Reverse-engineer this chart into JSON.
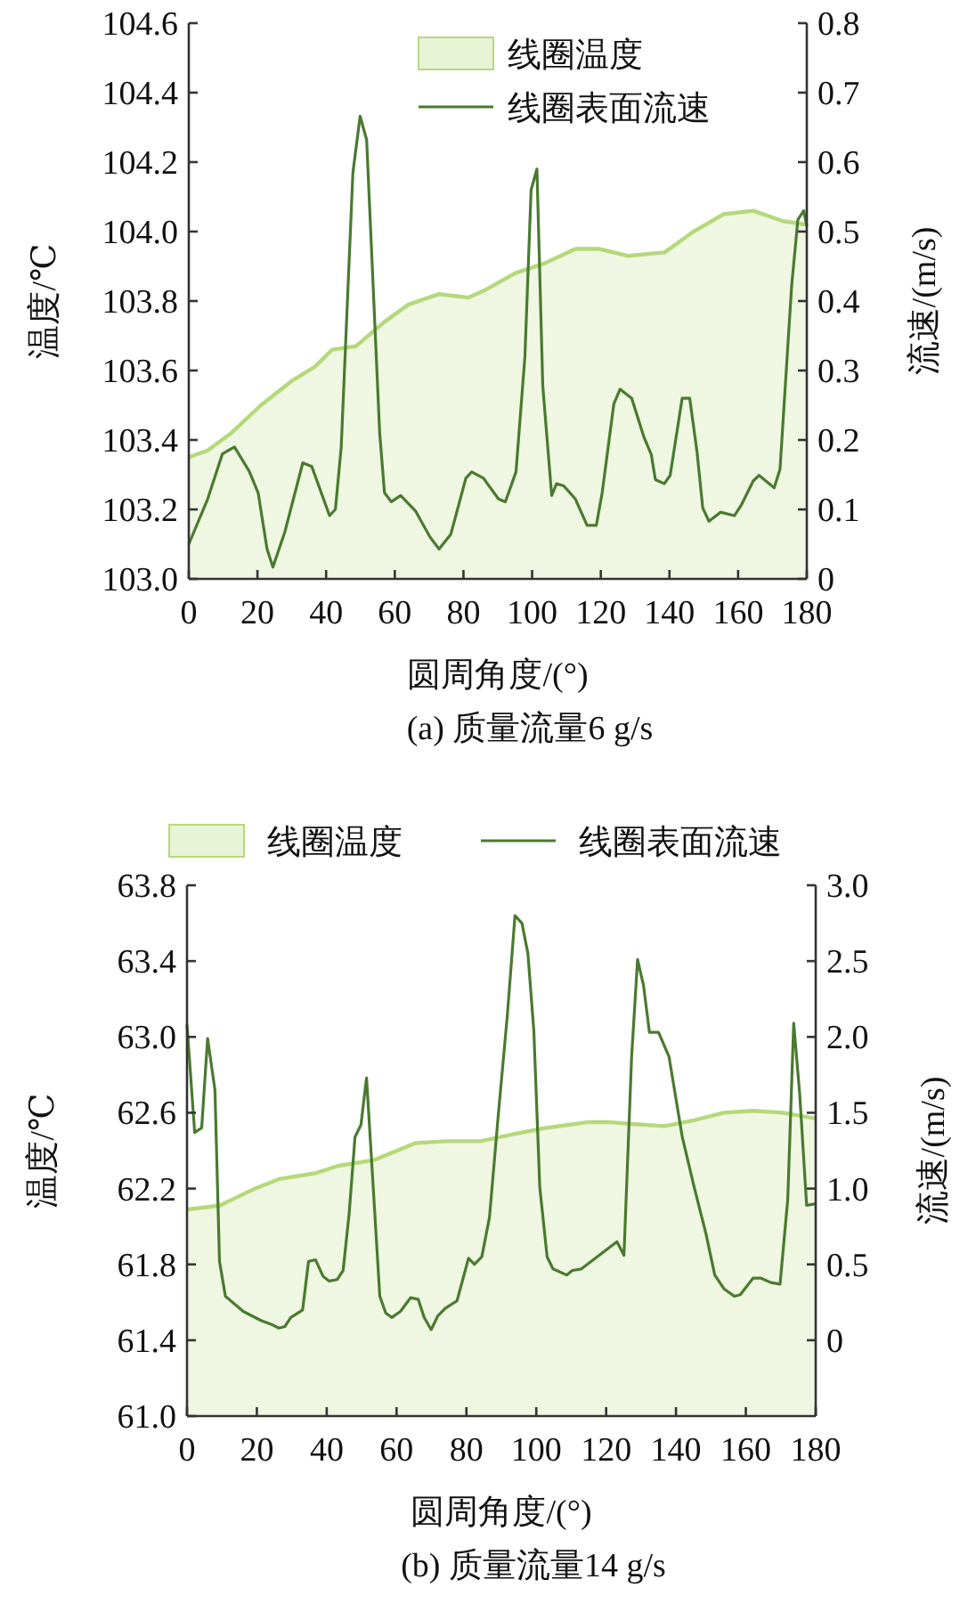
{
  "chart_data": [
    {
      "type": "area",
      "title": "(a) 质量流量6 g/s",
      "xlabel": "圆周角度/(°)",
      "ylabel": "温度/℃",
      "y2label": "流速/(m/s)",
      "legend": "top",
      "xlim": [
        0,
        180
      ],
      "xticks": [
        0,
        20,
        40,
        60,
        80,
        100,
        120,
        140,
        160,
        180
      ],
      "ylim": [
        103.0,
        104.6
      ],
      "yticks": [
        {
          "value": 103.0,
          "label": "103.0"
        },
        {
          "value": 103.2,
          "label": "103.2"
        },
        {
          "value": 103.4,
          "label": "103.4"
        },
        {
          "value": 103.6,
          "label": "103.6"
        },
        {
          "value": 103.8,
          "label": "103.8"
        },
        {
          "value": 104.0,
          "label": "104.0"
        },
        {
          "value": 104.2,
          "label": "104.2"
        },
        {
          "value": 104.4,
          "label": "104.4"
        },
        {
          "value": 104.6,
          "label": "104.6"
        }
      ],
      "y2lim": [
        0,
        0.8
      ],
      "y2ticks": [
        0,
        0.1,
        0.2,
        0.3,
        0.4,
        0.5,
        0.6,
        0.7,
        0.8
      ],
      "series": [
        {
          "name": "线圈温度",
          "color": "#b5d97a",
          "x": [
            0,
            5.5,
            12.4,
            21,
            30,
            36.6,
            41.8,
            48.7,
            57,
            64,
            72.9,
            81.5,
            86,
            95,
            104,
            112.6,
            119.5,
            128,
            138.6,
            147,
            155.8,
            164.4,
            173,
            180
          ],
          "values": [
            103.35,
            103.37,
            103.42,
            103.5,
            103.57,
            103.61,
            103.66,
            103.67,
            103.74,
            103.79,
            103.82,
            103.81,
            103.83,
            103.88,
            103.91,
            103.95,
            103.95,
            103.93,
            103.94,
            104.0,
            104.05,
            104.06,
            104.03,
            104.02
          ]
        },
        {
          "name": "线圈表面流速",
          "type": "line",
          "axis": "y2",
          "color": "#4a7a30",
          "x": [
            0,
            5.5,
            9.8,
            13.3,
            17.6,
            20.2,
            22.8,
            24.5,
            28,
            33.2,
            35.8,
            41,
            42.7,
            44.4,
            47.8,
            49.9,
            51.8,
            55.6,
            57,
            59,
            61.7,
            66,
            70.3,
            72.9,
            76.3,
            80.7,
            82.4,
            85.8,
            90.2,
            92.2,
            95.3,
            97.9,
            99.7,
            101.4,
            103.1,
            105.7,
            107.1,
            109.2,
            112.6,
            116,
            118.7,
            120.4,
            123.8,
            125.6,
            129,
            132.5,
            134.7,
            135.9,
            138.5,
            140.2,
            143.7,
            145.9,
            148,
            149.7,
            151.5,
            154.9,
            158.9,
            161,
            164.4,
            166.1,
            170.5,
            172.2,
            175.6,
            177.4,
            179.1,
            180
          ],
          "values": [
            0.05,
            0.115,
            0.18,
            0.19,
            0.155,
            0.124,
            0.043,
            0.017,
            0.068,
            0.167,
            0.162,
            0.091,
            0.1,
            0.19,
            0.585,
            0.666,
            0.632,
            0.21,
            0.124,
            0.111,
            0.12,
            0.098,
            0.06,
            0.043,
            0.064,
            0.145,
            0.154,
            0.145,
            0.115,
            0.111,
            0.154,
            0.32,
            0.56,
            0.59,
            0.278,
            0.12,
            0.137,
            0.134,
            0.115,
            0.077,
            0.077,
            0.124,
            0.252,
            0.273,
            0.26,
            0.205,
            0.179,
            0.143,
            0.137,
            0.149,
            0.26,
            0.26,
            0.184,
            0.102,
            0.083,
            0.096,
            0.091,
            0.107,
            0.141,
            0.149,
            0.131,
            0.158,
            0.423,
            0.517,
            0.53,
            0.508
          ]
        }
      ]
    },
    {
      "type": "area",
      "title": "(b) 质量流量14 g/s",
      "xlabel": "圆周角度/(°)",
      "ylabel": "温度/℃",
      "y2label": "流速/(m/s)",
      "legend": "top",
      "xlim": [
        0,
        180
      ],
      "xticks": [
        0,
        20,
        40,
        60,
        80,
        100,
        120,
        140,
        160,
        180
      ],
      "ylim": [
        61.0,
        63.8
      ],
      "yticks": [
        {
          "value": 61.0,
          "label": "61.0"
        },
        {
          "value": 61.4,
          "label": "61.4"
        },
        {
          "value": 61.8,
          "label": "61.8"
        },
        {
          "value": 62.2,
          "label": "62.2"
        },
        {
          "value": 62.6,
          "label": "62.6"
        },
        {
          "value": 63.0,
          "label": "63.0"
        },
        {
          "value": 63.4,
          "label": "63.4"
        },
        {
          "value": 63.8,
          "label": "63.8"
        }
      ],
      "y2lim": [
        -0.5,
        3.0
      ],
      "y2ticks": [
        0,
        0.5,
        {
          "value": 1.0,
          "label": "1.0"
        },
        1.5,
        {
          "value": 2.0,
          "label": "2.0"
        },
        2.5,
        {
          "value": 3.0,
          "label": "3.0"
        }
      ],
      "series": [
        {
          "name": "线圈温度",
          "color": "#b5d97a",
          "x": [
            0,
            9.3,
            19.5,
            26.3,
            36.5,
            43.3,
            53.5,
            65.4,
            73.9,
            84,
            94.2,
            102.7,
            114.6,
            121.4,
            128.2,
            136.7,
            145.2,
            153.7,
            162.1,
            170.6,
            180
          ],
          "values": [
            62.09,
            62.11,
            62.2,
            62.25,
            62.28,
            62.32,
            62.35,
            62.44,
            62.45,
            62.45,
            62.49,
            62.52,
            62.55,
            62.55,
            62.54,
            62.53,
            62.56,
            62.6,
            62.61,
            62.6,
            62.57
          ]
        },
        {
          "name": "线圈表面流速",
          "type": "line",
          "axis": "y2",
          "color": "#4a7a30",
          "x": [
            0,
            2.2,
            4.2,
            5.9,
            8,
            9.3,
            11,
            16.1,
            21.2,
            24.6,
            26.3,
            28,
            29.7,
            33.1,
            34.8,
            36.8,
            39,
            40.7,
            43,
            44.7,
            46.4,
            48.1,
            49.8,
            51.4,
            53.1,
            55.2,
            56.9,
            58.6,
            61.1,
            64,
            66.2,
            67.9,
            69.9,
            71.8,
            73.9,
            77.3,
            80.6,
            82.3,
            84.4,
            86.6,
            89.1,
            91.7,
            93.9,
            95.9,
            97.6,
            99.3,
            101,
            103.1,
            104.8,
            108.7,
            110.3,
            112.9,
            118,
            123.1,
            125.1,
            127.3,
            129,
            130.7,
            132.4,
            135,
            138,
            141.8,
            145.2,
            148.6,
            151.1,
            153.7,
            156.7,
            158.4,
            162.1,
            164.2,
            167.2,
            169.8,
            172,
            173.7,
            175.4,
            177.4,
            180
          ],
          "values": [
            2.08,
            1.37,
            1.4,
            1.99,
            1.65,
            0.52,
            0.29,
            0.19,
            0.13,
            0.1,
            0.08,
            0.09,
            0.15,
            0.2,
            0.52,
            0.53,
            0.42,
            0.39,
            0.4,
            0.46,
            0.83,
            1.34,
            1.42,
            1.73,
            1.09,
            0.29,
            0.18,
            0.15,
            0.19,
            0.28,
            0.27,
            0.15,
            0.07,
            0.16,
            0.21,
            0.26,
            0.54,
            0.5,
            0.55,
            0.81,
            1.48,
            2.14,
            2.8,
            2.75,
            2.55,
            2.04,
            1.01,
            0.55,
            0.47,
            0.43,
            0.46,
            0.47,
            0.56,
            0.65,
            0.56,
            1.87,
            2.51,
            2.34,
            2.03,
            2.03,
            1.87,
            1.34,
            1.01,
            0.7,
            0.43,
            0.34,
            0.29,
            0.3,
            0.41,
            0.41,
            0.38,
            0.37,
            0.93,
            2.09,
            1.63,
            0.89,
            0.9
          ]
        }
      ]
    }
  ]
}
